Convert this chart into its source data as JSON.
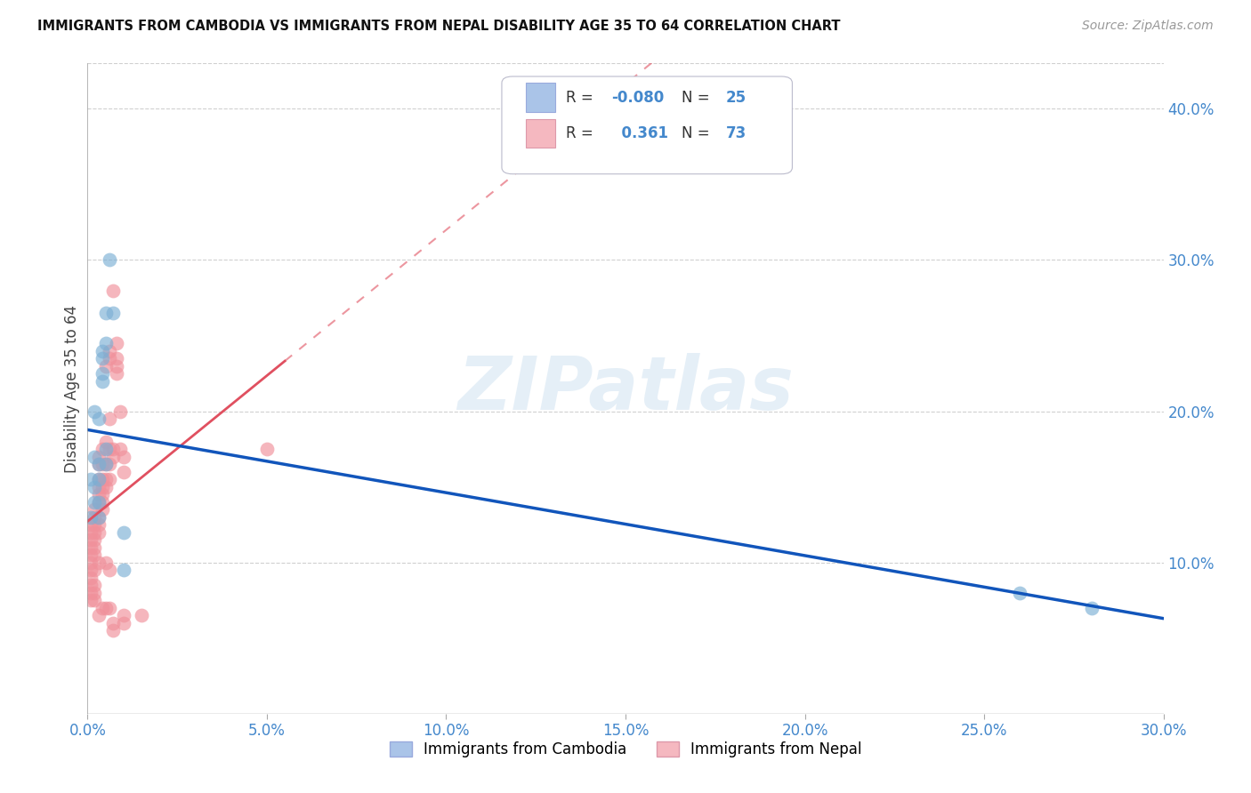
{
  "title": "IMMIGRANTS FROM CAMBODIA VS IMMIGRANTS FROM NEPAL DISABILITY AGE 35 TO 64 CORRELATION CHART",
  "source": "Source: ZipAtlas.com",
  "ylabel_label": "Disability Age 35 to 64",
  "xlim": [
    0.0,
    0.3
  ],
  "ylim": [
    0.0,
    0.43
  ],
  "xticks": [
    0.0,
    0.05,
    0.1,
    0.15,
    0.2,
    0.25,
    0.3
  ],
  "yticks": [
    0.1,
    0.2,
    0.3,
    0.4
  ],
  "ytick_labels": [
    "10.0%",
    "20.0%",
    "30.0%",
    "40.0%"
  ],
  "xtick_labels": [
    "0.0%",
    "5.0%",
    "10.0%",
    "15.0%",
    "20.0%",
    "25.0%",
    "30.0%"
  ],
  "background_color": "#ffffff",
  "grid_color": "#d0d0d0",
  "watermark_text": "ZIPatlas",
  "cambodia_color": "#7bafd4",
  "nepal_color": "#f0909a",
  "cambodia_line_color": "#1155bb",
  "nepal_line_color": "#e05060",
  "legend_color_cambodia": "#aac4e8",
  "legend_color_nepal": "#f5b8c0",
  "right_ytick_color": "#4488cc",
  "cambodia_R": -0.08,
  "cambodia_N": 25,
  "nepal_R": 0.361,
  "nepal_N": 73,
  "cambodia_points": [
    [
      0.001,
      0.155
    ],
    [
      0.001,
      0.13
    ],
    [
      0.002,
      0.2
    ],
    [
      0.002,
      0.17
    ],
    [
      0.002,
      0.15
    ],
    [
      0.002,
      0.14
    ],
    [
      0.003,
      0.195
    ],
    [
      0.003,
      0.165
    ],
    [
      0.003,
      0.155
    ],
    [
      0.003,
      0.14
    ],
    [
      0.003,
      0.13
    ],
    [
      0.004,
      0.24
    ],
    [
      0.004,
      0.235
    ],
    [
      0.004,
      0.225
    ],
    [
      0.004,
      0.22
    ],
    [
      0.005,
      0.265
    ],
    [
      0.005,
      0.245
    ],
    [
      0.005,
      0.175
    ],
    [
      0.005,
      0.165
    ],
    [
      0.006,
      0.3
    ],
    [
      0.007,
      0.265
    ],
    [
      0.01,
      0.12
    ],
    [
      0.01,
      0.095
    ],
    [
      0.26,
      0.08
    ],
    [
      0.28,
      0.07
    ]
  ],
  "nepal_points": [
    [
      0.001,
      0.125
    ],
    [
      0.001,
      0.12
    ],
    [
      0.001,
      0.115
    ],
    [
      0.001,
      0.11
    ],
    [
      0.001,
      0.105
    ],
    [
      0.001,
      0.1
    ],
    [
      0.001,
      0.095
    ],
    [
      0.001,
      0.09
    ],
    [
      0.001,
      0.085
    ],
    [
      0.001,
      0.08
    ],
    [
      0.001,
      0.075
    ],
    [
      0.002,
      0.135
    ],
    [
      0.002,
      0.13
    ],
    [
      0.002,
      0.125
    ],
    [
      0.002,
      0.12
    ],
    [
      0.002,
      0.115
    ],
    [
      0.002,
      0.11
    ],
    [
      0.002,
      0.105
    ],
    [
      0.002,
      0.095
    ],
    [
      0.002,
      0.085
    ],
    [
      0.002,
      0.08
    ],
    [
      0.002,
      0.075
    ],
    [
      0.003,
      0.17
    ],
    [
      0.003,
      0.165
    ],
    [
      0.003,
      0.155
    ],
    [
      0.003,
      0.15
    ],
    [
      0.003,
      0.145
    ],
    [
      0.003,
      0.14
    ],
    [
      0.003,
      0.13
    ],
    [
      0.003,
      0.125
    ],
    [
      0.003,
      0.12
    ],
    [
      0.003,
      0.1
    ],
    [
      0.003,
      0.065
    ],
    [
      0.004,
      0.175
    ],
    [
      0.004,
      0.165
    ],
    [
      0.004,
      0.155
    ],
    [
      0.004,
      0.15
    ],
    [
      0.004,
      0.145
    ],
    [
      0.004,
      0.14
    ],
    [
      0.004,
      0.135
    ],
    [
      0.004,
      0.07
    ],
    [
      0.005,
      0.23
    ],
    [
      0.005,
      0.18
    ],
    [
      0.005,
      0.165
    ],
    [
      0.005,
      0.155
    ],
    [
      0.005,
      0.15
    ],
    [
      0.005,
      0.1
    ],
    [
      0.005,
      0.07
    ],
    [
      0.006,
      0.24
    ],
    [
      0.006,
      0.235
    ],
    [
      0.006,
      0.195
    ],
    [
      0.006,
      0.175
    ],
    [
      0.006,
      0.165
    ],
    [
      0.006,
      0.155
    ],
    [
      0.006,
      0.095
    ],
    [
      0.006,
      0.07
    ],
    [
      0.007,
      0.28
    ],
    [
      0.007,
      0.175
    ],
    [
      0.007,
      0.17
    ],
    [
      0.007,
      0.06
    ],
    [
      0.007,
      0.055
    ],
    [
      0.008,
      0.245
    ],
    [
      0.008,
      0.235
    ],
    [
      0.008,
      0.23
    ],
    [
      0.008,
      0.225
    ],
    [
      0.009,
      0.2
    ],
    [
      0.009,
      0.175
    ],
    [
      0.01,
      0.17
    ],
    [
      0.01,
      0.16
    ],
    [
      0.01,
      0.065
    ],
    [
      0.01,
      0.06
    ],
    [
      0.015,
      0.065
    ],
    [
      0.05,
      0.175
    ]
  ]
}
